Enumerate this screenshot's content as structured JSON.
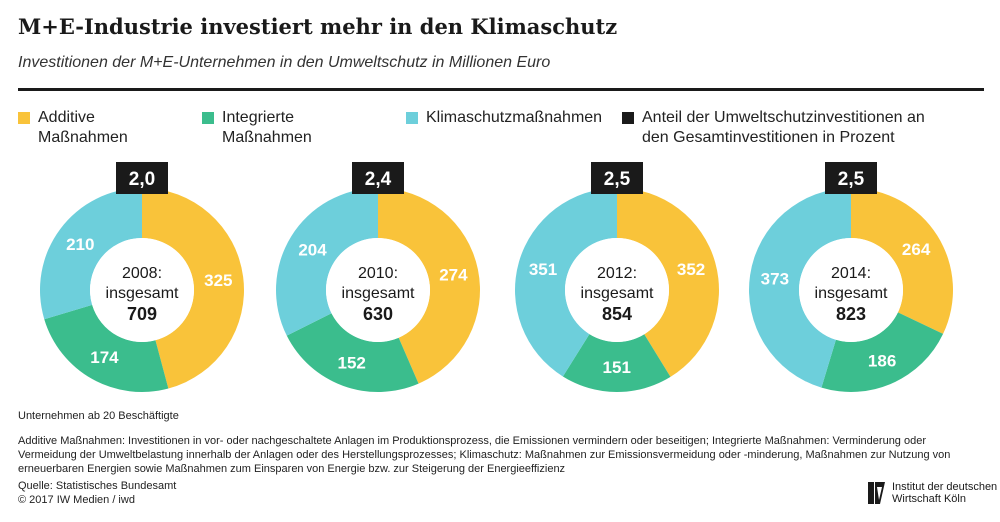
{
  "title": "M+E-Industrie investiert mehr in den Klimaschutz",
  "subtitle": "Investitionen der M+E-Unternehmen in den Umweltschutz in Millionen Euro",
  "legend": [
    {
      "label": "Additive Maßnahmen",
      "color": "#f9c33a"
    },
    {
      "label": "Integrierte Maßnahmen",
      "color": "#3bbd8d"
    },
    {
      "label": "Klimaschutzmaßnahmen",
      "color": "#6dcfdb"
    },
    {
      "label": "Anteil der Umweltschutzinvestitionen an den Gesamtinvestitionen in Prozent",
      "color": "#1a1a1a"
    }
  ],
  "colors": {
    "additive": "#f9c33a",
    "integrated": "#3bbd8d",
    "climate": "#6dcfdb",
    "badge": "#1a1a1a"
  },
  "chart_data": [
    {
      "type": "pie",
      "year": "2008:",
      "center_label": "insgesamt",
      "total": "709",
      "share": "2,0",
      "series": [
        {
          "name": "Additive Maßnahmen",
          "value": 325
        },
        {
          "name": "Integrierte Maßnahmen",
          "value": 174
        },
        {
          "name": "Klimaschutzmaßnahmen",
          "value": 210
        }
      ]
    },
    {
      "type": "pie",
      "year": "2010:",
      "center_label": "insgesamt",
      "total": "630",
      "share": "2,4",
      "series": [
        {
          "name": "Additive Maßnahmen",
          "value": 274
        },
        {
          "name": "Integrierte Maßnahmen",
          "value": 152
        },
        {
          "name": "Klimaschutzmaßnahmen",
          "value": 204
        }
      ]
    },
    {
      "type": "pie",
      "year": "2012:",
      "center_label": "insgesamt",
      "total": "854",
      "share": "2,5",
      "series": [
        {
          "name": "Additive Maßnahmen",
          "value": 352
        },
        {
          "name": "Integrierte Maßnahmen",
          "value": 151
        },
        {
          "name": "Klimaschutzmaßnahmen",
          "value": 351
        }
      ]
    },
    {
      "type": "pie",
      "year": "2014:",
      "center_label": "insgesamt",
      "total": "823",
      "share": "2,5",
      "series": [
        {
          "name": "Additive Maßnahmen",
          "value": 264
        },
        {
          "name": "Integrierte Maßnahmen",
          "value": 186
        },
        {
          "name": "Klimaschutzmaßnahmen",
          "value": 373
        }
      ]
    }
  ],
  "footer": {
    "note": "Unternehmen ab 20 Beschäftigte",
    "definitions": "Additive Maßnahmen: Investitionen in vor- oder nachgeschaltete Anlagen im Produktionsprozess, die Emissionen vermindern oder beseitigen; Integrierte Maßnahmen: Verminderung oder Vermeidung der Umweltbelastung innerhalb der Anlagen oder des Herstellungsprozesses; Klimaschutz: Maßnahmen zur Emissionsvermeidung oder -minderung, Maßnahmen zur Nutzung von erneuerbaren Energien sowie Maßnahmen zum Einsparen von Energie bzw. zur Steigerung der Energieeffizienz",
    "source": "Quelle: Statistisches Bundesamt",
    "copyright": "© 2017 IW Medien / iwd"
  },
  "logo": {
    "text": "Institut der deutschen Wirtschaft Köln",
    "mark": "IW"
  }
}
